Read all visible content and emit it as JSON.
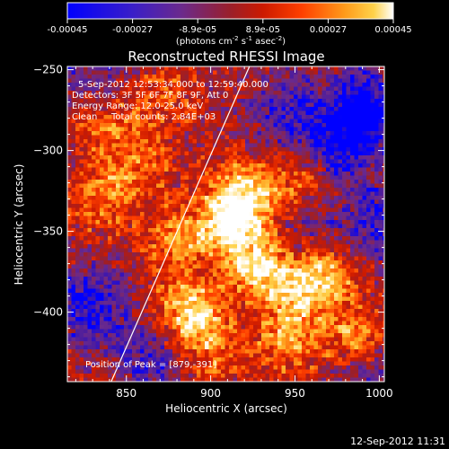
{
  "colorbar": {
    "ticks": [
      "-0.00045",
      "-0.00027",
      "-8.9e-05",
      "8.9e-05",
      "0.00027",
      "0.00045"
    ],
    "units_main": "(photons cm",
    "units_e1": "-2",
    "units_s": " s",
    "units_e2": "-1",
    "units_asec": " asec",
    "units_e3": "-2",
    "units_close": ")"
  },
  "info": {
    "time_range": "5-Sep-2012 12:53:34.000 to 12:59:40.000",
    "detectors": "Detectors: 3F 5F 6F 7F 8F 9F, Att 0",
    "energy_range": "Energy Range: 12.0-25.0 keV",
    "clean_label": "Clean",
    "total_counts": "Total counts: 2.84E+03",
    "peak_position": "Position of Peak = [879,-391]"
  },
  "footer": {
    "timestamp": "12-Sep-2012 11:31"
  },
  "chart_data": {
    "type": "heatmap",
    "title": "Reconstructed RHESSI Image",
    "xlabel": "Heliocentric X (arcsec)",
    "ylabel": "Heliocentric Y (arcsec)",
    "xlim": [
      815,
      1003
    ],
    "ylim": [
      -443,
      -248
    ],
    "x_ticks": [
      850,
      900,
      950,
      1000
    ],
    "y_ticks": [
      -400,
      -350,
      -300,
      -250
    ],
    "x_tick_labels": [
      "850",
      "900",
      "950",
      "1000"
    ],
    "y_tick_labels": [
      "−400",
      "−350",
      "−300",
      "−250"
    ],
    "zlim": [
      -0.00045,
      0.00045
    ],
    "colormap": [
      "#0000ff",
      "#4b1c9e",
      "#6b2a8c",
      "#9a1f2a",
      "#cc1a00",
      "#ff4000",
      "#ff9a1a",
      "#ffd24a",
      "#ffffff"
    ],
    "limb_line": [
      [
        841,
        -443
      ],
      [
        923,
        -248
      ]
    ],
    "peak": [
      879,
      -391
    ],
    "hotspots": [
      {
        "x": 912,
        "y": -345,
        "amp": 1.0
      },
      {
        "x": 928,
        "y": -372,
        "amp": 0.85
      },
      {
        "x": 888,
        "y": -400,
        "amp": 0.95
      },
      {
        "x": 950,
        "y": -390,
        "amp": 0.65
      },
      {
        "x": 968,
        "y": -375,
        "amp": 0.75
      },
      {
        "x": 920,
        "y": -325,
        "amp": 0.8
      },
      {
        "x": 880,
        "y": -355,
        "amp": 0.6
      },
      {
        "x": 835,
        "y": -330,
        "amp": 0.55
      },
      {
        "x": 838,
        "y": -280,
        "amp": 0.5
      },
      {
        "x": 858,
        "y": -308,
        "amp": 0.5
      },
      {
        "x": 985,
        "y": -415,
        "amp": 0.6
      },
      {
        "x": 945,
        "y": -420,
        "amp": 0.55
      },
      {
        "x": 900,
        "y": -425,
        "amp": 0.5
      },
      {
        "x": 870,
        "y": -265,
        "amp": 0.4
      },
      {
        "x": 955,
        "y": -320,
        "amp": 0.45
      }
    ],
    "coldspots": [
      {
        "x": 990,
        "y": -275,
        "amp": 0.9
      },
      {
        "x": 975,
        "y": -300,
        "amp": 0.7
      },
      {
        "x": 1000,
        "y": -345,
        "amp": 0.6
      },
      {
        "x": 945,
        "y": -275,
        "amp": 0.5
      },
      {
        "x": 835,
        "y": -255,
        "amp": 0.5
      },
      {
        "x": 828,
        "y": -395,
        "amp": 0.7
      },
      {
        "x": 865,
        "y": -430,
        "amp": 0.5
      },
      {
        "x": 995,
        "y": -440,
        "amp": 0.4
      },
      {
        "x": 960,
        "y": -350,
        "amp": 0.35
      }
    ]
  }
}
